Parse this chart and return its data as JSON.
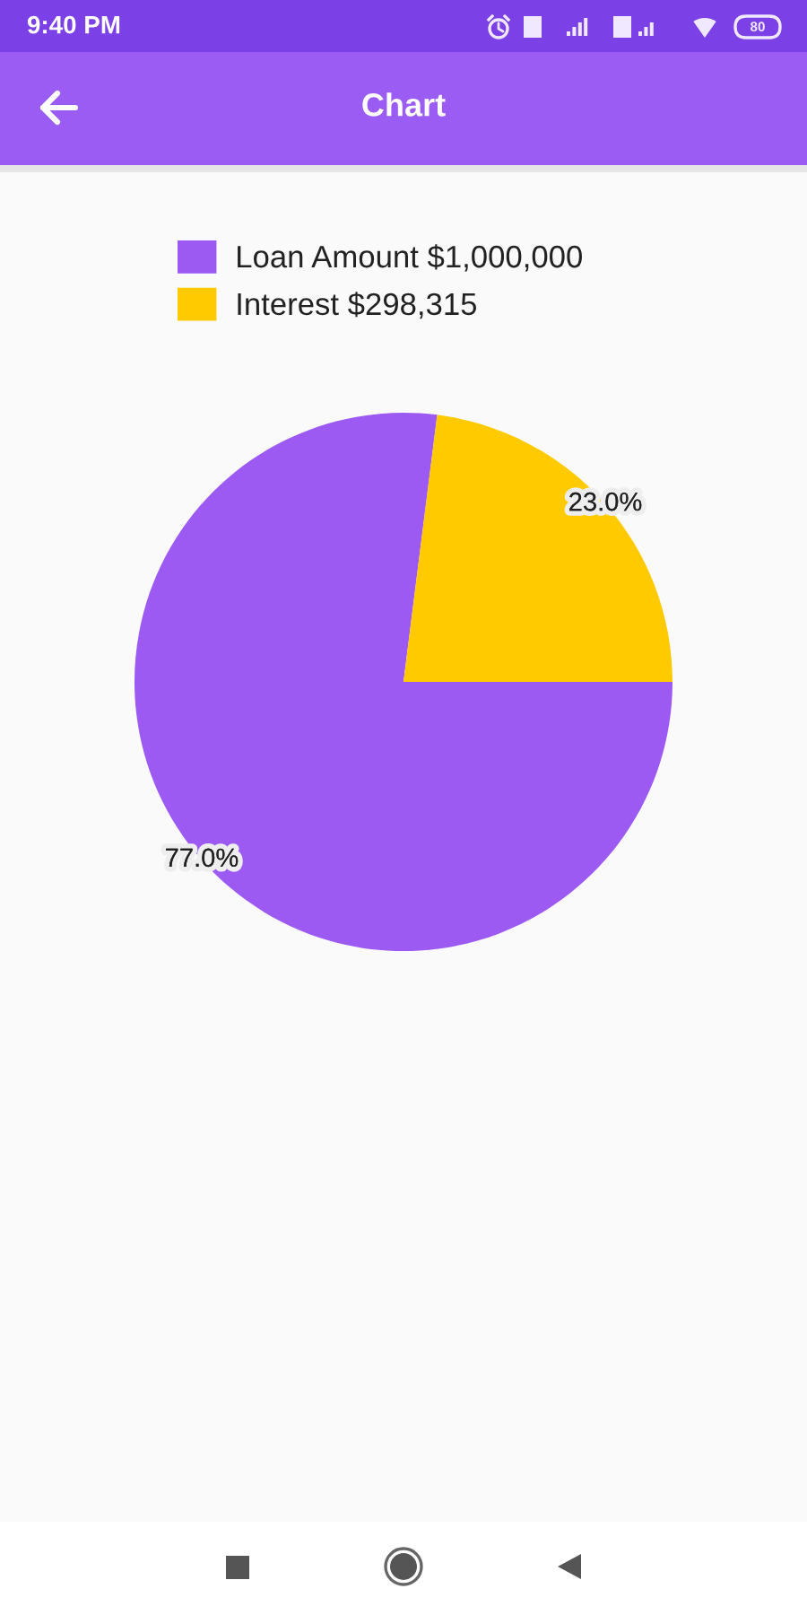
{
  "chart_data": {
    "type": "pie",
    "title": "Chart",
    "categories": [
      "Loan Amount $1,000,000",
      "Interest $298,315"
    ],
    "values": [
      77.0,
      23.0
    ],
    "colors": [
      "#9c5af2",
      "#ffca00"
    ],
    "value_labels": [
      "77.0%",
      "23.0%"
    ],
    "legend": "top",
    "annotations": [
      "9:40 PM",
      "80"
    ]
  }
}
